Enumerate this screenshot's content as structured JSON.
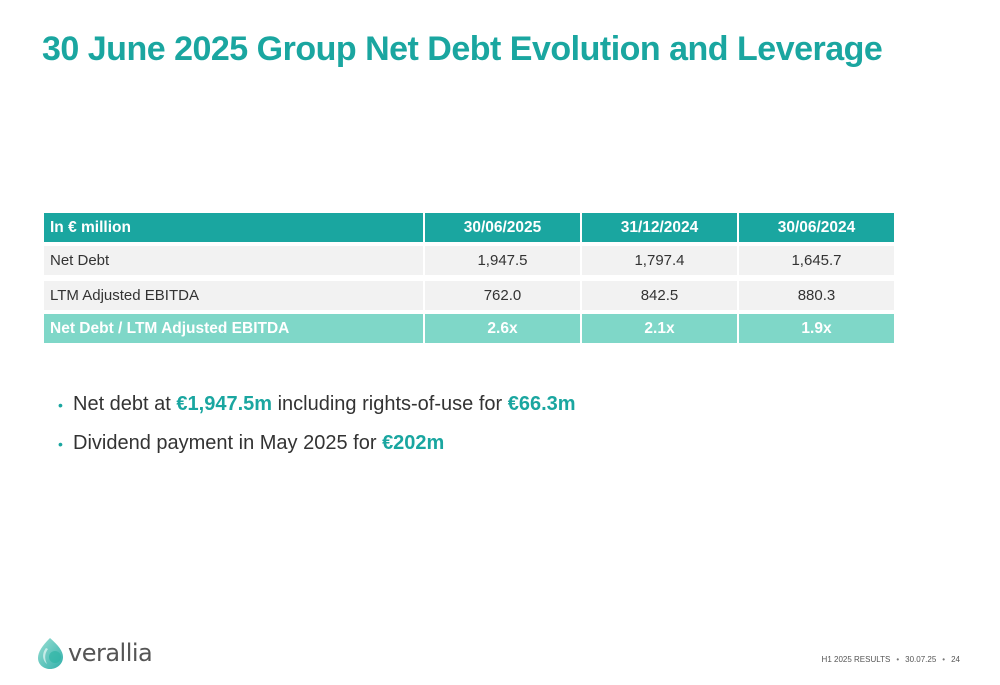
{
  "slide": {
    "title": "30 June 2025 Group Net Debt Evolution and Leverage"
  },
  "table": {
    "headers": [
      "In € million",
      "30/06/2025",
      "31/12/2024",
      "30/06/2024"
    ],
    "rows": [
      {
        "label": "Net Debt",
        "values": [
          "1,947.5",
          "1,797.4",
          "1,645.7"
        ]
      },
      {
        "label": "LTM Adjusted EBITDA",
        "values": [
          "762.0",
          "842.5",
          "880.3"
        ]
      }
    ],
    "ratio_row": {
      "label": "Net Debt / LTM Adjusted EBITDA",
      "values": [
        "2.6x",
        "2.1x",
        "1.9x"
      ]
    }
  },
  "bullets": [
    {
      "text1": "Net debt at ",
      "hl1": "€1,947.5m",
      "text2": " including rights-of-use for ",
      "hl2": "€66.3m"
    },
    {
      "text1": "Dividend payment in May 2025 for ",
      "hl1": "€202m"
    }
  ],
  "bullet_marker": "•",
  "logo": {
    "word": "verallia"
  },
  "footer": {
    "report": "H1 2025 RESULTS",
    "date": "30.07.25",
    "page": "24",
    "separator": "•"
  },
  "colors": {
    "accent": "#1aa6a0",
    "ratio_row": "#7fd7c8",
    "row_bg": "#f2f2f2"
  }
}
